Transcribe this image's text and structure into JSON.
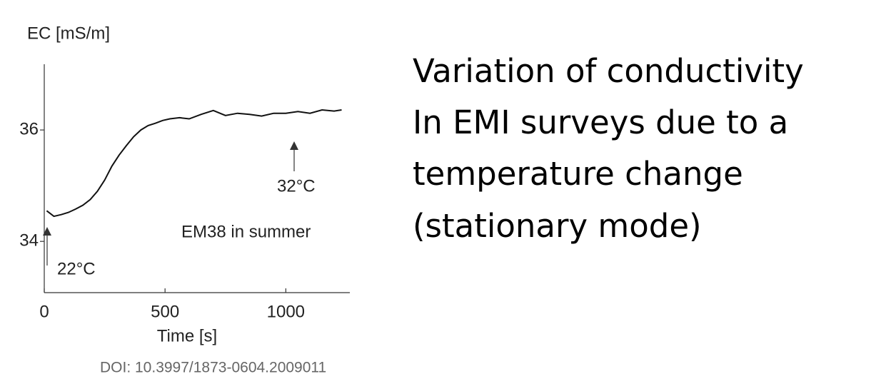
{
  "chart_data": {
    "type": "line",
    "y_label": "EC [mS/m]",
    "x_label": "Time [s]",
    "xlim": [
      0,
      1265
    ],
    "ylim": [
      33.08,
      37.18
    ],
    "xticks": [
      0,
      500,
      1000
    ],
    "yticks": [
      34,
      36
    ],
    "annotations": [
      "22°C",
      "32°C",
      "EM38 in summer"
    ],
    "series": [
      {
        "name": "EC",
        "color": "#111",
        "x": [
          10,
          40,
          70,
          100,
          130,
          160,
          190,
          220,
          250,
          280,
          310,
          340,
          370,
          400,
          430,
          460,
          490,
          520,
          560,
          600,
          650,
          700,
          750,
          800,
          850,
          900,
          950,
          1000,
          1050,
          1100,
          1150,
          1200,
          1231
        ],
        "values": [
          34.55,
          34.45,
          34.48,
          34.52,
          34.58,
          34.65,
          34.75,
          34.9,
          35.1,
          35.35,
          35.55,
          35.72,
          35.88,
          36.0,
          36.08,
          36.12,
          36.17,
          36.2,
          36.22,
          36.2,
          36.28,
          36.35,
          36.26,
          36.3,
          36.28,
          36.25,
          36.3,
          36.3,
          36.33,
          36.3,
          36.36,
          36.34,
          36.36
        ]
      }
    ]
  },
  "text": {
    "lines": [
      "Variation of conductivity",
      "In EMI surveys due to a",
      "temperature change",
      "(stationary mode)"
    ],
    "doi": "DOI: 10.3997/1873-0604.2009011"
  }
}
